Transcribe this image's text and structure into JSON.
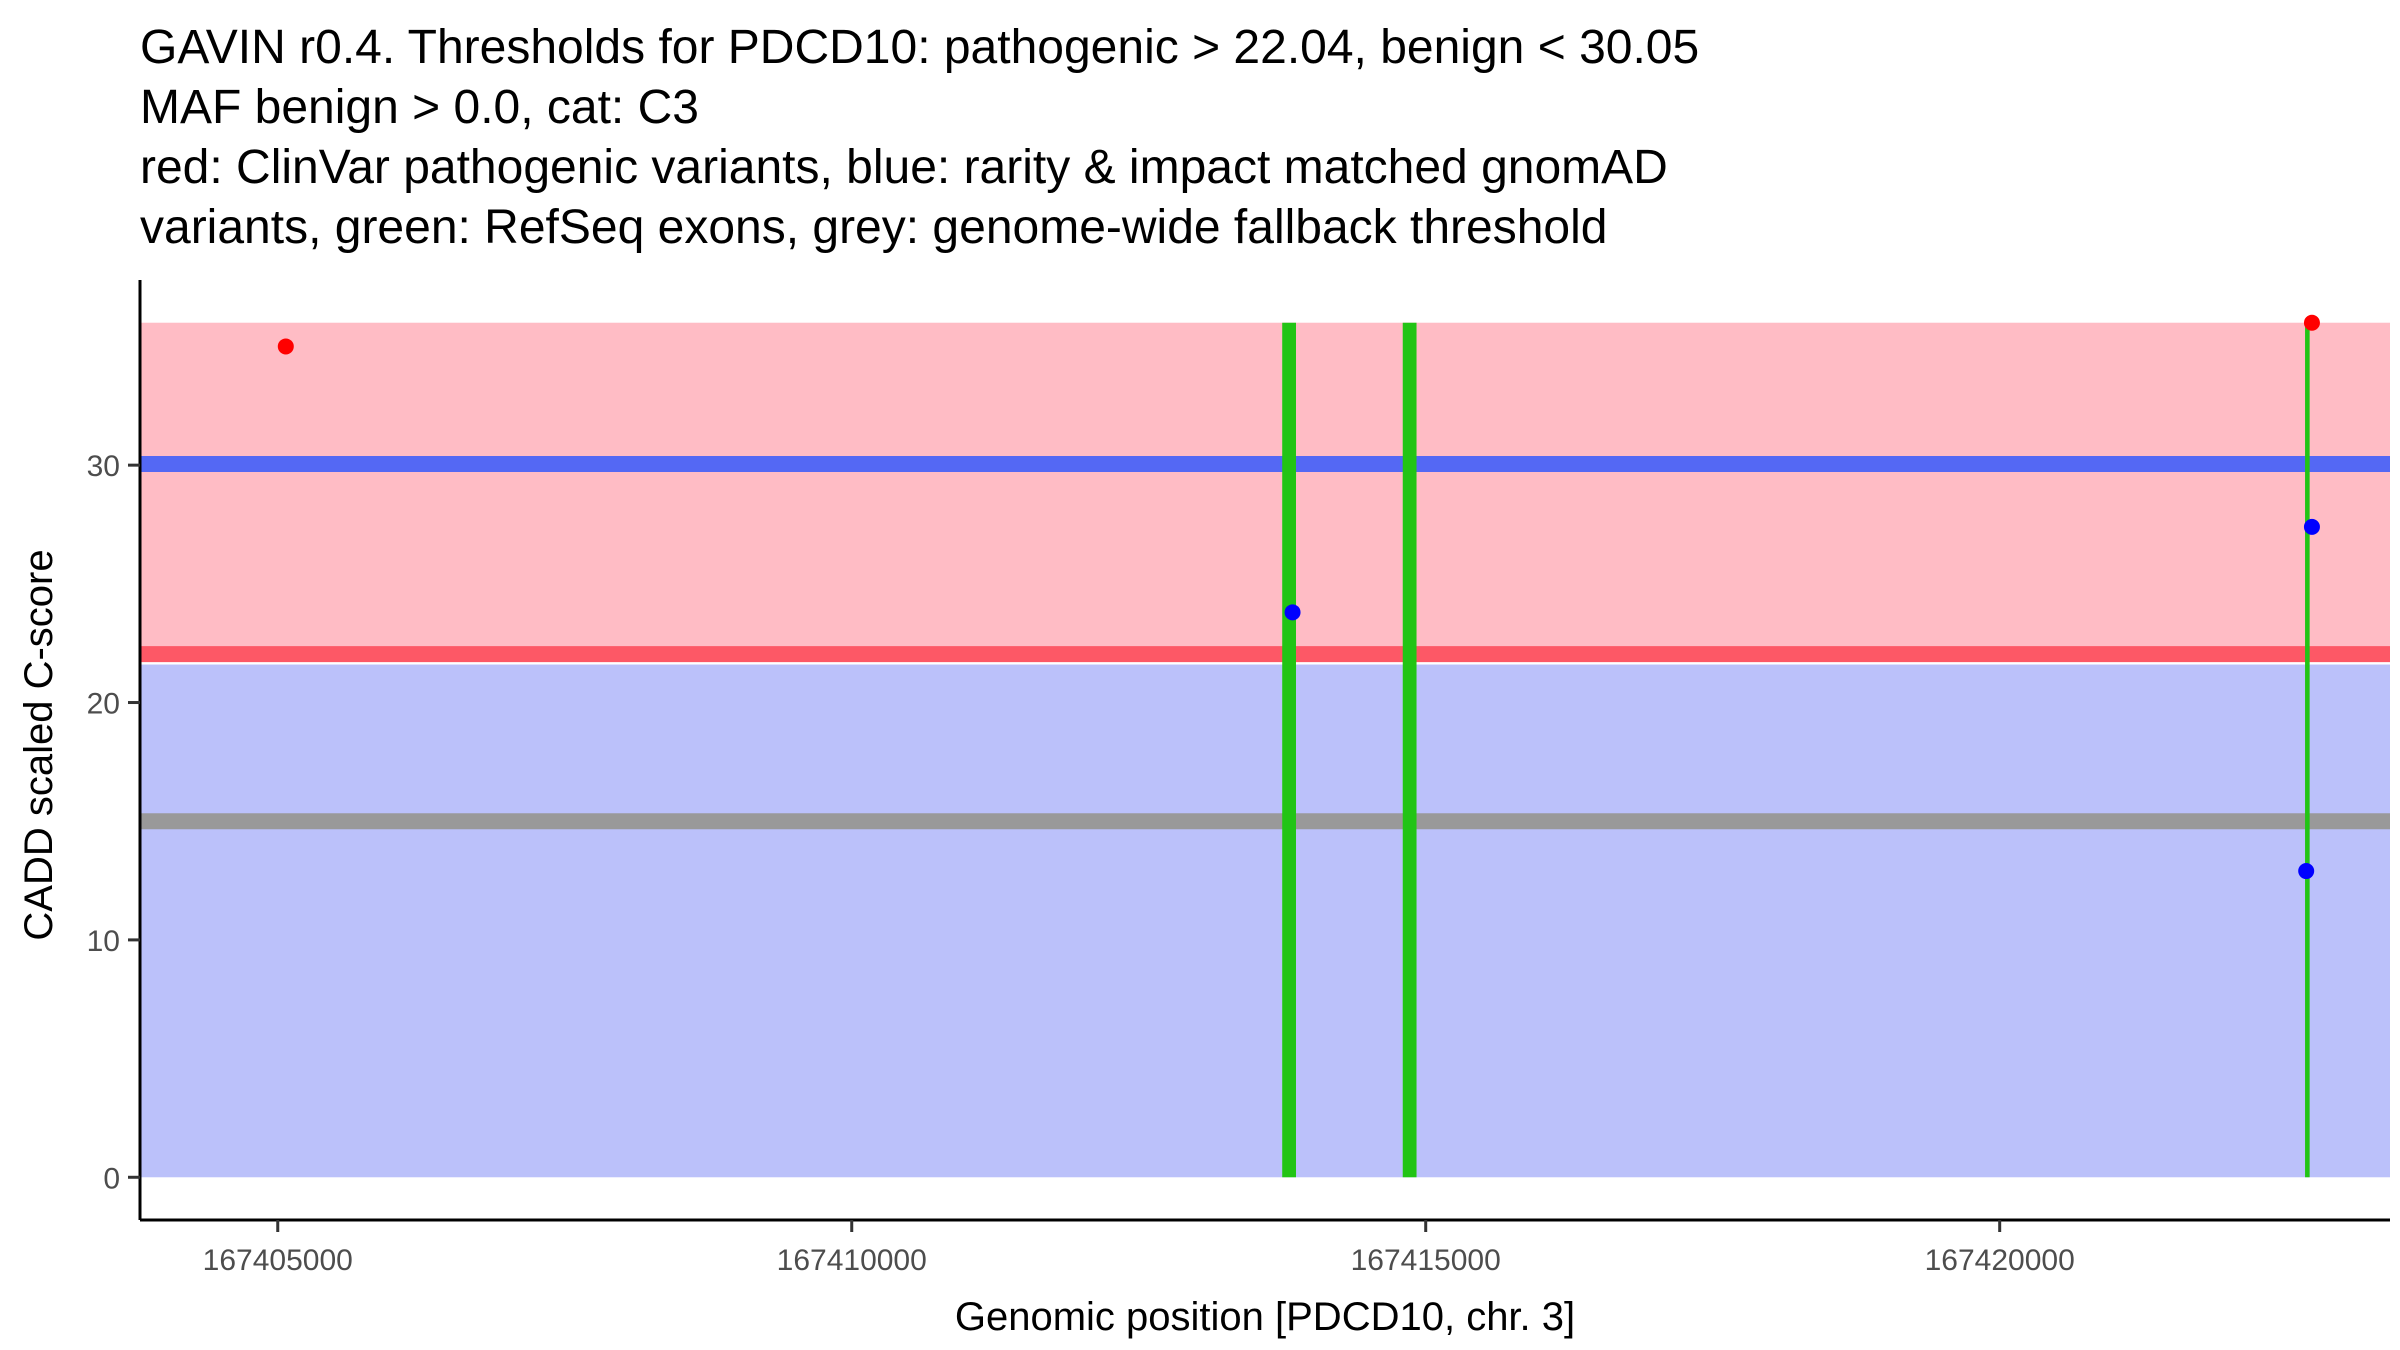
{
  "chart_data": {
    "type": "scatter",
    "title_lines": [
      "GAVIN r0.4. Thresholds for PDCD10: pathogenic > 22.04, benign < 30.05",
      "MAF benign > 0.0, cat: C3",
      "red: ClinVar pathogenic variants, blue: rarity & impact matched gnomAD",
      "variants, green: RefSeq exons, grey: genome-wide fallback threshold"
    ],
    "xlabel": "Genomic position [PDCD10, chr. 3]",
    "ylabel": "CADD scaled C-score",
    "xlim": [
      167403800,
      167423400
    ],
    "ylim": [
      -1.8,
      37.8
    ],
    "x_ticks": [
      167405000,
      167410000,
      167415000,
      167420000
    ],
    "y_ticks": [
      0,
      10,
      20,
      30
    ],
    "regions": [
      {
        "name": "pathogenic-region",
        "y0": 22.04,
        "y1": 36.0,
        "color": "#ffbcc5"
      },
      {
        "name": "benign-region",
        "y0": 0,
        "y1": 21.6,
        "color": "#bbc1fa"
      }
    ],
    "thresholds": [
      {
        "name": "benign-threshold",
        "y": 30.05,
        "color": "#5468f4"
      },
      {
        "name": "pathogenic-threshold",
        "y": 22.04,
        "color": "#fd5866"
      },
      {
        "name": "genome-wide-fallback-threshold",
        "y": 15.0,
        "color": "#999999"
      }
    ],
    "exons": [
      {
        "start": 167413750,
        "end": 167413870,
        "color": "#22c415"
      },
      {
        "start": 167414800,
        "end": 167414920,
        "color": "#22c415"
      },
      {
        "start": 167422660,
        "end": 167422700,
        "color": "#22c415"
      }
    ],
    "series": [
      {
        "name": "ClinVar pathogenic variants",
        "color": "#ff0000",
        "points": [
          {
            "x": 167405070,
            "y": 35.0
          },
          {
            "x": 167422720,
            "y": 36.0
          }
        ]
      },
      {
        "name": "gnomAD matched variants",
        "color": "#0000ff",
        "points": [
          {
            "x": 167413840,
            "y": 23.8
          },
          {
            "x": 167422720,
            "y": 27.4
          },
          {
            "x": 167422670,
            "y": 12.9
          }
        ]
      }
    ]
  }
}
